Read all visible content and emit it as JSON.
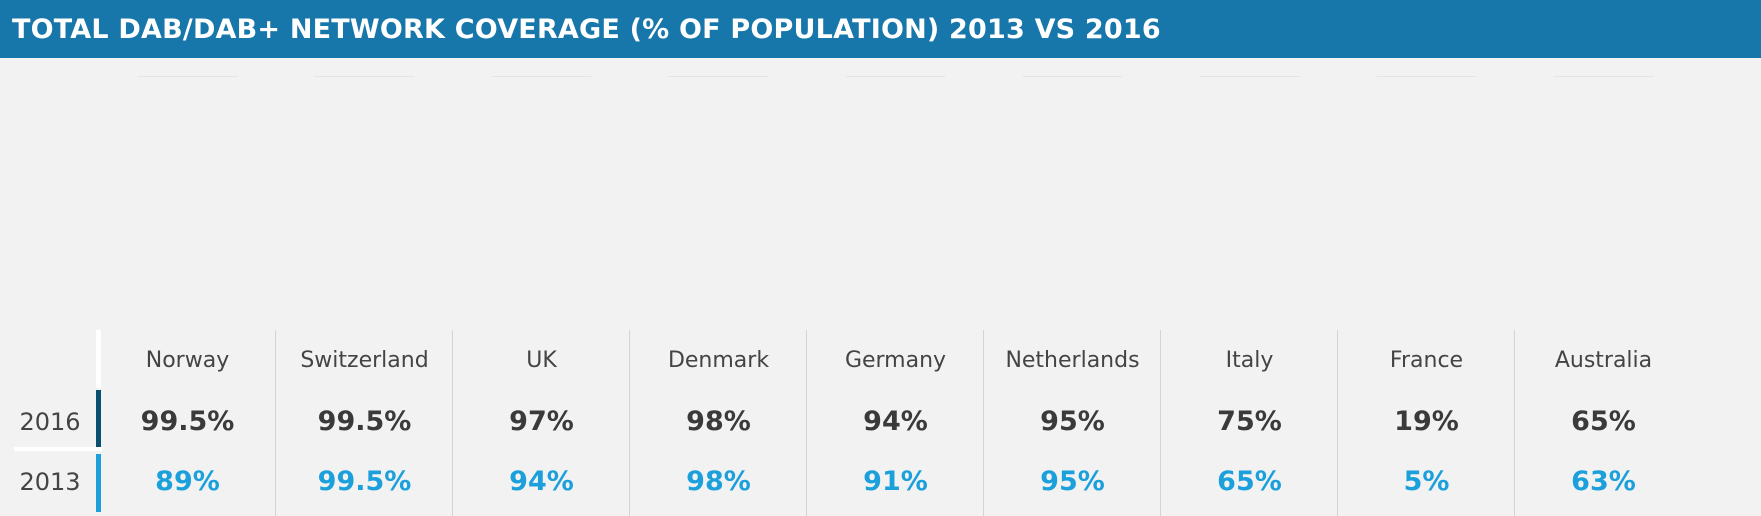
{
  "title": "TOTAL DAB/DAB+ NETWORK COVERAGE (% OF POPULATION) 2013 VS 2016",
  "row_labels": {
    "y2016": "2016",
    "y2013": "2013"
  },
  "colors": {
    "header": "#1777aa",
    "coverage_2016": "#0a4f70",
    "coverage_2013": "#1ba0dc",
    "no_coverage": "#bdbdbd",
    "value_2016_text": "#3a3a3a"
  },
  "chart_data": {
    "type": "pictogram",
    "title": "TOTAL DAB/DAB+ NETWORK COVERAGE (% OF POPULATION) 2013 VS 2016",
    "unit": "%",
    "series": [
      {
        "name": "2016",
        "values": [
          99.5,
          99.5,
          97,
          98,
          94,
          95,
          75,
          19,
          65
        ]
      },
      {
        "name": "2013",
        "values": [
          89,
          99.5,
          94,
          98,
          91,
          95,
          65,
          5,
          63
        ]
      }
    ],
    "countries": [
      {
        "name": "Norway",
        "v2016": 99.5,
        "v2013": 89,
        "label2016": "99.5%",
        "label2013": "89%"
      },
      {
        "name": "Switzerland",
        "v2016": 99.5,
        "v2013": 99.5,
        "label2016": "99.5%",
        "label2013": "99.5%"
      },
      {
        "name": "UK",
        "v2016": 97,
        "v2013": 94,
        "label2016": "97%",
        "label2013": "94%"
      },
      {
        "name": "Denmark",
        "v2016": 98,
        "v2013": 98,
        "label2016": "98%",
        "label2013": "98%"
      },
      {
        "name": "Germany",
        "v2016": 94,
        "v2013": 91,
        "label2016": "94%",
        "label2013": "91%"
      },
      {
        "name": "Netherlands",
        "v2016": 95,
        "v2013": 95,
        "label2016": "95%",
        "label2013": "95%"
      },
      {
        "name": "Italy",
        "v2016": 75,
        "v2013": 65,
        "label2016": "75%",
        "label2013": "65%"
      },
      {
        "name": "France",
        "v2016": 19,
        "v2013": 5,
        "label2016": "19%",
        "label2013": "5%"
      },
      {
        "name": "Australia",
        "v2016": 65,
        "v2013": 63,
        "label2016": "65%",
        "label2013": "63%"
      }
    ]
  }
}
